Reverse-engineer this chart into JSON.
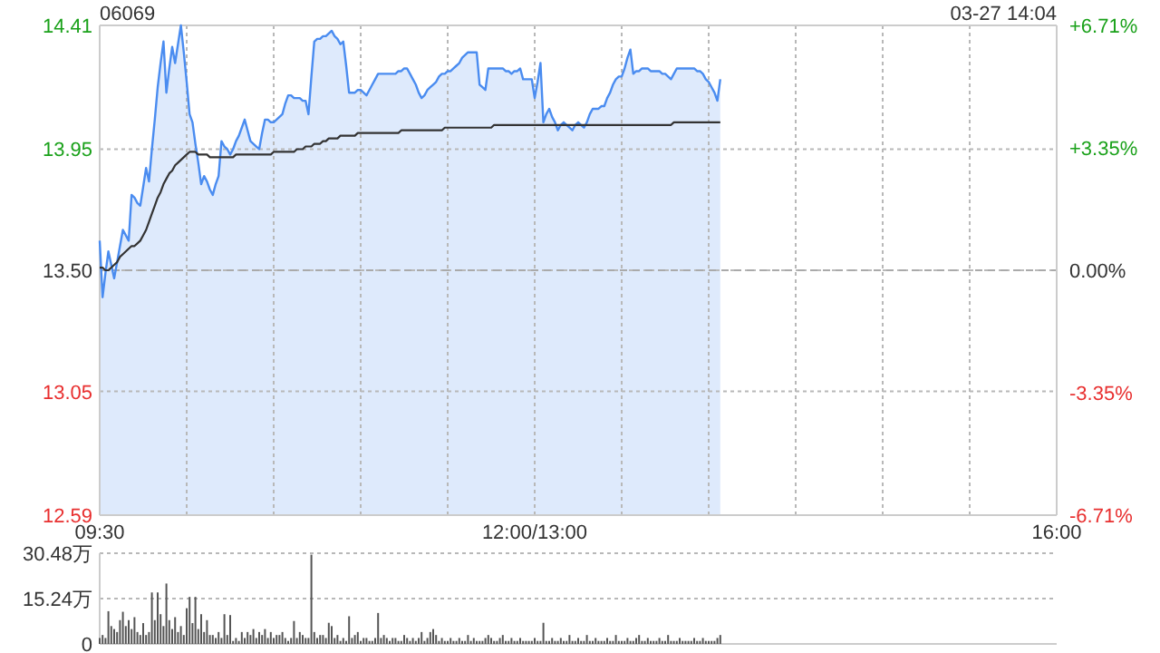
{
  "chart_data": [
    {
      "type": "area",
      "title": "06069",
      "annotations": [
        "03-27 14:04"
      ],
      "categories": [
        "09:30",
        null,
        null,
        null,
        null,
        null,
        null,
        null,
        null,
        null,
        null,
        null,
        null,
        null,
        null,
        null,
        null,
        null,
        null,
        null,
        null,
        null,
        null,
        null,
        null,
        null,
        null,
        null,
        null,
        null,
        null,
        null,
        null,
        null,
        null,
        null,
        null,
        null,
        null,
        null,
        null,
        null,
        null,
        null,
        null,
        null,
        null,
        null,
        null,
        null,
        null,
        null,
        null,
        null,
        null,
        null,
        null,
        null,
        null,
        null,
        null,
        null,
        null,
        null,
        null,
        null,
        null,
        null,
        null,
        null,
        null,
        null,
        null,
        null,
        null,
        null,
        null,
        null,
        null,
        null,
        null,
        null,
        null,
        null,
        null,
        null,
        null,
        null,
        null,
        null,
        null,
        null,
        null,
        null,
        null,
        null,
        null,
        null,
        null,
        null,
        null,
        null,
        null,
        null,
        null,
        null,
        null,
        null,
        null,
        null,
        null,
        null,
        null,
        null,
        null,
        null,
        null,
        null,
        null,
        null,
        null,
        null,
        null,
        null,
        null,
        null,
        null,
        null,
        null,
        null,
        null,
        null,
        null,
        null,
        null,
        null,
        null,
        null,
        null,
        null,
        null,
        null,
        null,
        null,
        null,
        null,
        null,
        null,
        null,
        null,
        "12:00/13:00",
        null,
        null,
        null,
        null,
        null,
        null,
        null,
        null,
        null,
        null,
        null,
        null,
        null,
        null,
        null,
        null,
        null,
        null,
        null,
        null,
        null,
        null,
        null,
        null,
        null,
        null,
        null,
        null,
        null,
        null,
        null,
        null,
        null,
        null,
        null,
        null,
        null,
        null,
        null,
        null,
        null,
        null,
        null,
        null,
        null,
        null,
        null,
        null,
        null,
        null,
        null,
        null,
        null,
        null,
        null,
        null,
        null,
        null,
        null,
        null,
        null,
        null,
        null,
        null,
        null,
        null,
        null,
        null,
        null,
        null,
        null,
        null,
        null,
        null,
        null,
        null,
        null,
        null,
        null,
        null,
        null,
        null,
        null,
        null,
        null,
        null,
        null,
        null,
        null,
        null,
        null,
        null,
        null,
        null,
        null,
        null,
        null,
        null,
        null,
        null,
        null,
        null,
        null,
        null,
        null,
        null,
        null,
        null,
        null,
        null,
        null,
        null,
        null,
        null,
        null,
        null,
        null,
        null,
        null,
        null,
        null,
        null,
        null,
        null,
        null,
        null,
        null,
        null,
        null,
        null,
        null,
        null,
        null,
        null,
        null,
        null,
        null,
        null,
        null,
        null,
        null,
        null,
        null,
        null,
        null,
        null,
        null,
        null,
        null,
        null,
        null,
        null,
        null,
        null,
        null,
        null,
        null,
        null,
        null,
        null,
        null,
        null,
        null,
        null,
        null,
        null,
        null,
        null,
        null,
        null,
        null,
        null,
        null,
        null,
        null,
        null,
        null,
        null,
        null,
        "16:00"
      ],
      "ylim": [
        12.59,
        14.41
      ],
      "yticks": [
        12.59,
        13.05,
        {
          "value": 13.5,
          "label": "13.50"
        },
        13.95,
        14.41
      ],
      "y2lim": [
        -6.71,
        6.71
      ],
      "y2ticks": [
        {
          "value": -6.71,
          "label": "-6.71%"
        },
        {
          "value": -3.35,
          "label": "-3.35%"
        },
        {
          "value": 0,
          "label": "0.00%"
        },
        {
          "value": 3.35,
          "label": "+3.35%"
        },
        {
          "value": 6.71,
          "label": "+6.71%"
        }
      ],
      "grid": true,
      "ref_lines": [
        {
          "axis": "y",
          "value": 13.5,
          "line_style": "dashed",
          "color": "#aaaaaa"
        }
      ],
      "series": [
        {
          "color": "#4a8cf0",
          "values": [
            13.61,
            13.4,
            13.49,
            13.57,
            13.52,
            13.47,
            13.53,
            13.59,
            13.65,
            13.63,
            13.61,
            13.78,
            13.77,
            13.75,
            13.74,
            13.81,
            13.88,
            13.83,
            13.95,
            14.06,
            14.18,
            14.27,
            14.35,
            14.16,
            14.25,
            14.33,
            14.27,
            14.34,
            14.41,
            14.31,
            14.2,
            14.08,
            14.05,
            13.97,
            13.9,
            13.82,
            13.85,
            13.83,
            13.8,
            13.78,
            13.82,
            13.85,
            13.98,
            13.96,
            13.95,
            13.93,
            13.95,
            13.98,
            14.0,
            14.03,
            14.06,
            14.02,
            13.98,
            13.97,
            13.96,
            13.95,
            14.01,
            14.06,
            14.06,
            14.05,
            14.05,
            14.06,
            14.07,
            14.08,
            14.12,
            14.15,
            14.15,
            14.14,
            14.14,
            14.14,
            14.13,
            14.13,
            14.08,
            14.22,
            14.35,
            14.36,
            14.36,
            14.37,
            14.37,
            14.38,
            14.39,
            14.37,
            14.36,
            14.34,
            14.35,
            14.26,
            14.16,
            14.16,
            14.16,
            14.17,
            14.17,
            14.16,
            14.15,
            14.17,
            14.19,
            14.21,
            14.23,
            14.23,
            14.23,
            14.23,
            14.23,
            14.23,
            14.23,
            14.24,
            14.24,
            14.25,
            14.25,
            14.23,
            14.21,
            14.19,
            14.16,
            14.14,
            14.15,
            14.17,
            14.18,
            14.19,
            14.2,
            14.22,
            14.23,
            14.23,
            14.24,
            14.24,
            14.25,
            14.26,
            14.27,
            14.29,
            14.3,
            14.31,
            14.31,
            14.31,
            14.31,
            14.19,
            14.18,
            14.17,
            14.25,
            14.25,
            14.25,
            14.25,
            14.25,
            14.25,
            14.24,
            14.24,
            14.23,
            14.24,
            14.24,
            14.25,
            14.21,
            14.21,
            14.21,
            14.21,
            14.14,
            14.2,
            14.27,
            14.05,
            14.08,
            14.1,
            14.07,
            14.05,
            14.02,
            14.04,
            14.05,
            14.04,
            14.03,
            14.02,
            14.04,
            14.05,
            14.04,
            14.03,
            14.05,
            14.08,
            14.1,
            14.1,
            14.1,
            14.11,
            14.11,
            14.14,
            14.16,
            14.19,
            14.21,
            14.22,
            14.22,
            14.25,
            14.29,
            14.32,
            14.23,
            14.24,
            14.24,
            14.25,
            14.25,
            14.25,
            14.24,
            14.24,
            14.24,
            14.24,
            14.23,
            14.23,
            14.22,
            14.21,
            14.23,
            14.25,
            14.25,
            14.25,
            14.25,
            14.25,
            14.25,
            14.25,
            14.24,
            14.24,
            14.23,
            14.21,
            14.2,
            14.18,
            14.16,
            14.13,
            14.21,
            null,
            null,
            null,
            null,
            null,
            null,
            null,
            null,
            null,
            null,
            null,
            null,
            null,
            null,
            null,
            null,
            null,
            null,
            null,
            null,
            null,
            null,
            null,
            null,
            null,
            null,
            null,
            null,
            null,
            null,
            null,
            null,
            null,
            null,
            null,
            null,
            null,
            null,
            null,
            null,
            null,
            null,
            null,
            null,
            null,
            null,
            null,
            null,
            null,
            null,
            null,
            null,
            null,
            null,
            null,
            null,
            null,
            null,
            null,
            null,
            null,
            null,
            null,
            null,
            null,
            null,
            null,
            null,
            null,
            null,
            null,
            null,
            null,
            null,
            null,
            null,
            null,
            null,
            null,
            null,
            null,
            null,
            null,
            null,
            null,
            null,
            null,
            null,
            null,
            null,
            null,
            null,
            null,
            null,
            null,
            null,
            null,
            null,
            null,
            null,
            null,
            null,
            null,
            null,
            null,
            null,
            null,
            null,
            null,
            null,
            null,
            null,
            null,
            null,
            null,
            null
          ]
        },
        {
          "type": "line",
          "color": "#333333",
          "values": [
            13.51,
            13.51,
            13.5,
            13.5,
            13.51,
            13.52,
            13.53,
            13.55,
            13.56,
            13.57,
            13.58,
            13.59,
            13.59,
            13.6,
            13.61,
            13.63,
            13.65,
            13.68,
            13.71,
            13.74,
            13.77,
            13.79,
            13.82,
            13.84,
            13.86,
            13.87,
            13.89,
            13.9,
            13.91,
            13.92,
            13.93,
            13.94,
            13.94,
            13.94,
            13.93,
            13.93,
            13.93,
            13.93,
            13.92,
            13.92,
            13.92,
            13.92,
            13.92,
            13.92,
            13.92,
            13.92,
            13.92,
            13.93,
            13.93,
            13.93,
            13.93,
            13.93,
            13.93,
            13.93,
            13.93,
            13.93,
            13.93,
            13.93,
            13.93,
            13.93,
            13.94,
            13.94,
            13.94,
            13.94,
            13.94,
            13.94,
            13.94,
            13.94,
            13.95,
            13.95,
            13.95,
            13.96,
            13.96,
            13.96,
            13.97,
            13.97,
            13.97,
            13.98,
            13.98,
            13.99,
            13.99,
            13.99,
            13.99,
            14.0,
            14.0,
            14.0,
            14.0,
            14.0,
            14.0,
            14.01,
            14.01,
            14.01,
            14.01,
            14.01,
            14.01,
            14.01,
            14.01,
            14.01,
            14.01,
            14.01,
            14.01,
            14.01,
            14.01,
            14.01,
            14.02,
            14.02,
            14.02,
            14.02,
            14.02,
            14.02,
            14.02,
            14.02,
            14.02,
            14.02,
            14.02,
            14.02,
            14.02,
            14.02,
            14.02,
            14.03,
            14.03,
            14.03,
            14.03,
            14.03,
            14.03,
            14.03,
            14.03,
            14.03,
            14.03,
            14.03,
            14.03,
            14.03,
            14.03,
            14.03,
            14.03,
            14.03,
            14.04,
            14.04,
            14.04,
            14.04,
            14.04,
            14.04,
            14.04,
            14.04,
            14.04,
            14.04,
            14.04,
            14.04,
            14.04,
            14.04,
            14.04,
            14.04,
            14.04,
            14.04,
            14.04,
            14.04,
            14.04,
            14.04,
            14.04,
            14.04,
            14.04,
            14.04,
            14.04,
            14.04,
            14.04,
            14.04,
            14.04,
            14.04,
            14.04,
            14.04,
            14.04,
            14.04,
            14.04,
            14.04,
            14.04,
            14.04,
            14.04,
            14.04,
            14.04,
            14.04,
            14.04,
            14.04,
            14.04,
            14.04,
            14.04,
            14.04,
            14.04,
            14.04,
            14.04,
            14.04,
            14.04,
            14.04,
            14.04,
            14.04,
            14.04,
            14.04,
            14.04,
            14.04,
            14.05,
            14.05,
            14.05,
            14.05,
            14.05,
            14.05,
            14.05,
            14.05,
            14.05,
            14.05,
            14.05,
            14.05,
            14.05,
            14.05,
            14.05,
            14.05,
            14.05,
            null,
            null,
            null,
            null,
            null,
            null,
            null,
            null,
            null,
            null,
            null,
            null,
            null,
            null,
            null,
            null,
            null,
            null,
            null,
            null,
            null,
            null,
            null,
            null,
            null,
            null,
            null,
            null,
            null,
            null,
            null,
            null,
            null,
            null,
            null,
            null,
            null,
            null,
            null,
            null,
            null,
            null,
            null,
            null,
            null,
            null,
            null,
            null,
            null,
            null,
            null,
            null,
            null,
            null,
            null,
            null,
            null,
            null,
            null,
            null,
            null,
            null,
            null,
            null,
            null,
            null,
            null,
            null,
            null,
            null,
            null,
            null,
            null,
            null,
            null,
            null,
            null,
            null,
            null,
            null,
            null,
            null,
            null,
            null,
            null,
            null,
            null,
            null,
            null,
            null,
            null,
            null,
            null,
            null,
            null,
            null,
            null,
            null,
            null,
            null,
            null,
            null,
            null,
            null,
            null,
            null,
            null,
            null,
            null,
            null,
            null,
            null,
            null,
            null,
            null,
            null
          ]
        }
      ]
    },
    {
      "type": "bar",
      "color": "#555555",
      "ylim": [
        0,
        30.48
      ],
      "yticks": [
        0,
        {
          "value": 15.24,
          "label": "15.24万"
        },
        {
          "value": 30.48,
          "label": "30.48万"
        }
      ],
      "grid": "y",
      "tick_labels": "y",
      "categories": [
        null,
        null,
        null,
        null,
        null,
        null,
        null,
        null,
        null,
        null,
        null,
        null,
        null,
        null,
        null,
        null,
        null,
        null,
        null,
        null,
        null,
        null,
        null,
        null,
        null,
        null,
        null,
        null,
        null,
        null,
        null,
        null,
        null,
        null,
        null,
        null,
        null,
        null,
        null,
        null,
        null,
        null,
        null,
        null,
        null,
        null,
        null,
        null,
        null,
        null,
        null,
        null,
        null,
        null,
        null,
        null,
        null,
        null,
        null,
        null,
        null,
        null,
        null,
        null,
        null,
        null,
        null,
        null,
        null,
        null,
        null,
        null,
        null,
        null,
        null,
        null,
        null,
        null,
        null,
        null,
        null,
        null,
        null,
        null,
        null,
        null,
        null,
        null,
        null,
        null,
        null,
        null,
        null,
        null,
        null,
        null,
        null,
        null,
        null,
        null,
        null,
        null,
        null,
        null,
        null,
        null,
        null,
        null,
        null,
        null,
        null,
        null,
        null,
        null,
        null,
        null,
        null,
        null,
        null,
        null,
        null,
        null,
        null,
        null,
        null,
        null,
        null,
        null,
        null,
        null,
        null,
        null,
        null,
        null,
        null,
        null,
        null,
        null,
        null,
        null,
        null,
        null,
        null,
        null,
        null,
        null,
        null,
        null,
        null,
        null,
        null,
        null,
        null,
        null,
        null,
        null,
        null,
        null,
        null,
        null,
        null,
        null,
        null,
        null,
        null,
        null,
        null,
        null,
        null,
        null,
        null,
        null,
        null,
        null,
        null,
        null,
        null,
        null,
        null,
        null,
        null,
        null,
        null,
        null,
        null,
        null,
        null,
        null,
        null,
        null,
        null,
        null,
        null,
        null,
        null,
        null,
        null,
        null,
        null,
        null,
        null,
        null,
        null,
        null,
        null,
        null,
        null,
        null,
        null,
        null,
        null,
        null,
        null,
        null,
        null,
        null,
        null,
        null,
        null,
        null,
        null,
        null,
        null,
        null,
        null,
        null,
        null,
        null,
        null,
        null,
        null,
        null,
        null,
        null,
        null,
        null,
        null,
        null,
        null,
        null,
        null,
        null,
        null,
        null,
        null,
        null,
        null,
        null,
        null,
        null,
        null,
        null,
        null,
        null,
        null,
        null,
        null,
        null,
        null,
        null,
        null,
        null,
        null,
        null,
        null,
        null,
        null,
        null,
        null,
        null,
        null,
        null,
        null,
        null,
        null,
        null,
        null,
        null,
        null,
        null,
        null,
        null,
        null,
        null,
        null,
        null,
        null,
        null,
        null,
        null,
        null,
        null,
        null,
        null,
        null,
        null,
        null,
        null,
        null,
        null,
        null,
        null,
        null,
        null,
        null,
        null,
        null,
        null,
        null,
        null,
        null,
        null,
        null,
        null,
        null,
        null,
        null,
        null,
        null,
        null,
        null,
        null,
        null,
        null,
        null,
        null,
        null,
        null,
        null,
        null,
        null
      ],
      "values": [
        2,
        3,
        2,
        11,
        6,
        5,
        4,
        8,
        10.8,
        6,
        8,
        5,
        9,
        4,
        3,
        7,
        3,
        4,
        17.3,
        8,
        17.3,
        10,
        6,
        20.3,
        8,
        5,
        9,
        4,
        6,
        3,
        12,
        15.8,
        7,
        15.8,
        5,
        10,
        4,
        8,
        3,
        3,
        2,
        4,
        2,
        10,
        3,
        9.7,
        1,
        2,
        1,
        4,
        2,
        4,
        3,
        5,
        2,
        4,
        3,
        5,
        2,
        4,
        2,
        3,
        3,
        4,
        2,
        1,
        2,
        7.7,
        2,
        4,
        3,
        2,
        2,
        30,
        4,
        2,
        3,
        3,
        2,
        7.1,
        6,
        2,
        3,
        1,
        2,
        1,
        9.3,
        2,
        3,
        4,
        1,
        2,
        2,
        1,
        1,
        2,
        10.4,
        2,
        3,
        2,
        1,
        2,
        2,
        1,
        1,
        3,
        2,
        1,
        2,
        1,
        2,
        4,
        1,
        2,
        4,
        5,
        3,
        1,
        2,
        1,
        1,
        2,
        1,
        1,
        2,
        1,
        1,
        3,
        1,
        2,
        1,
        1,
        1,
        2,
        3,
        2,
        1,
        1,
        2,
        3,
        1,
        1,
        2,
        1,
        1,
        2,
        1,
        1,
        1,
        1,
        2,
        1,
        1,
        7.1,
        1,
        1,
        2,
        1,
        1,
        2,
        1,
        1,
        3,
        1,
        1,
        2,
        1,
        1,
        3,
        1,
        1,
        2,
        1,
        1,
        1,
        2,
        1,
        1,
        3,
        1,
        1,
        1,
        2,
        1,
        1,
        2,
        3,
        1,
        1,
        2,
        1,
        1,
        1,
        2,
        1,
        1,
        3,
        1,
        1,
        1,
        2,
        1,
        1,
        1,
        1,
        2,
        1,
        1,
        2,
        1,
        1,
        1,
        1,
        2,
        3,
        null,
        null,
        null,
        null,
        null,
        null,
        null,
        null,
        null,
        null,
        null,
        null,
        null,
        null,
        null,
        null,
        null,
        null,
        null,
        null,
        null,
        null,
        null,
        null,
        null,
        null,
        null,
        null,
        null,
        null,
        null,
        null,
        null,
        null,
        null,
        null,
        null,
        null,
        null,
        null,
        null,
        null,
        null,
        null,
        null,
        null,
        null,
        null,
        null,
        null,
        null,
        null,
        null,
        null,
        null,
        null,
        null,
        null,
        null,
        null,
        null,
        null,
        null,
        null,
        null,
        null,
        null,
        null,
        null,
        null,
        null,
        null,
        null,
        null,
        null,
        null,
        null,
        null,
        null,
        null,
        null,
        null,
        null,
        null,
        null,
        null,
        null,
        null,
        null,
        null,
        null,
        null,
        null,
        null,
        null,
        null,
        null,
        null,
        null,
        null,
        null,
        null,
        null,
        null,
        null,
        null,
        null,
        null,
        null,
        null,
        null,
        null,
        null,
        null,
        null,
        null
      ]
    }
  ]
}
